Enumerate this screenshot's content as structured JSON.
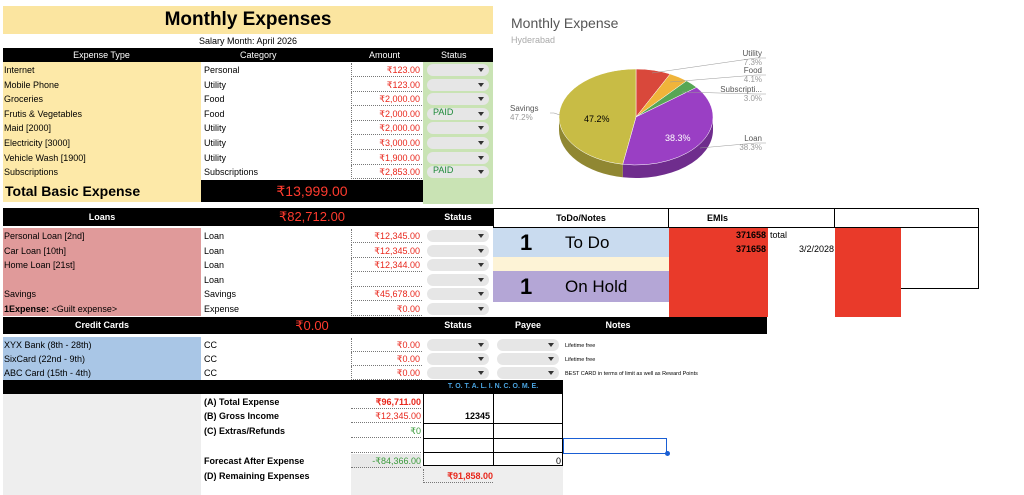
{
  "title": "Monthly Expenses",
  "salary_month": "Salary Month: April 2026",
  "expenses": {
    "headers": [
      "Expense Type",
      "Category",
      "Amount",
      "Status"
    ],
    "rows": [
      {
        "type": "Internet",
        "category": "Personal",
        "amount": "₹123.00",
        "status": ""
      },
      {
        "type": "Mobile Phone",
        "category": "Utility",
        "amount": "₹123.00",
        "status": ""
      },
      {
        "type": "Groceries",
        "category": "Food",
        "amount": "₹2,000.00",
        "status": ""
      },
      {
        "type": "Frutis & Vegetables",
        "category": "Food",
        "amount": "₹2,000.00",
        "status": "PAID"
      },
      {
        "type": "Maid [2000]",
        "category": "Utility",
        "amount": "₹2,000.00",
        "status": ""
      },
      {
        "type": "Electricity [3000]",
        "category": "Utility",
        "amount": "₹3,000.00",
        "status": ""
      },
      {
        "type": "Vehicle Wash [1900]",
        "category": "Utility",
        "amount": "₹1,900.00",
        "status": ""
      },
      {
        "type": "Subscriptions",
        "category": "Subscriptions",
        "amount": "₹2,853.00",
        "status": "PAID"
      }
    ],
    "total_label": "Total Basic Expense",
    "total_value": "₹13,999.00"
  },
  "loans": {
    "header": "Loans",
    "total": "₹82,712.00",
    "status_header": "Status",
    "rows": [
      {
        "type": "Personal Loan [2nd]",
        "category": "Loan",
        "amount": "₹12,345.00"
      },
      {
        "type": "Car Loan [10th]",
        "category": "Loan",
        "amount": "₹12,345.00"
      },
      {
        "type": "Home Loan [21st]",
        "category": "Loan",
        "amount": "₹12,344.00"
      },
      {
        "type": "",
        "category": "Loan",
        "amount": ""
      },
      {
        "type": "Savings",
        "category": "Savings",
        "amount": "₹45,678.00"
      },
      {
        "type_bold": "1Expense:",
        "type": " <Guilt expense>",
        "category": "Expense",
        "amount": "₹0.00"
      }
    ]
  },
  "credit_cards": {
    "header": "Credit Cards",
    "total": "₹0.00",
    "status_header": "Status",
    "payee_header": "Payee",
    "notes_header": "Notes",
    "rows": [
      {
        "type": "XYX Bank (8th - 28th)",
        "category": "CC",
        "amount": "₹0.00",
        "note": "Lifetime free"
      },
      {
        "type": "SixCard (22nd - 9th)",
        "category": "CC",
        "amount": "₹0.00",
        "note": "Lifetime free"
      },
      {
        "type": "ABC Card (15th - 4th)",
        "category": "CC",
        "amount": "₹0.00",
        "note": "BEST CARD in terms of limit as well as Reward Points"
      }
    ]
  },
  "total_income_label": "T. O. T. A. L.   I. N. C. O. M. E.",
  "summary": {
    "total_expense_label": "(A) Total Expense",
    "total_expense_value": "₹96,711.00",
    "gross_income_label": "(B) Gross Income",
    "gross_income_value": "₹12,345.00",
    "gross_income_entry": "12345",
    "extras_label": "(C) Extras/Refunds",
    "extras_value": "₹0",
    "forecast_label": "Forecast After Expense",
    "forecast_value": "-₹84,366.00",
    "forecast_entry": "0",
    "remaining_label": "(D) Remaining Expenses",
    "remaining_value": "₹91,858.00"
  },
  "todo": {
    "header": "ToDo/Notes",
    "todo_count": "1",
    "todo_label": "To Do",
    "hold_count": "1",
    "hold_label": "On Hold"
  },
  "emis": {
    "header": "EMIs",
    "row1_value": "371658",
    "row1_label": "total",
    "row2_value": "371658",
    "row2_date": "3/2/2028"
  },
  "chart_data": {
    "type": "pie",
    "title": "Monthly Expense",
    "subtitle": "Hyderabad",
    "slices": [
      {
        "label": "Savings",
        "value": 47.2,
        "display": "47.2%",
        "color": "#c8bc45"
      },
      {
        "label": "Utility",
        "value": 7.3,
        "display": "7.3%",
        "color": "#d9483b"
      },
      {
        "label": "Food",
        "value": 4.1,
        "display": "4.1%",
        "color": "#f0b43a"
      },
      {
        "label": "Subscripti...",
        "value": 3.0,
        "display": "3.0%",
        "color": "#57a655"
      },
      {
        "label": "Loan",
        "value": 38.3,
        "display": "38.3%",
        "color": "#9a3fc4"
      }
    ],
    "inner_labels": [
      "47.2%",
      "38.3%"
    ]
  },
  "colors": {
    "title_bg": "#fbe5a0",
    "basic_bg": "#fde9a8",
    "status_bg": "#c9e3b4",
    "loan_bg": "#e09a9a",
    "cc_bg": "#a9c6e6",
    "todo_blue": "#c9dbef",
    "todo_cream": "#fdf3d6",
    "todo_purple": "#b4a6d6",
    "emi_red": "#e93a2a",
    "summary_bg": "#eeeeee"
  }
}
